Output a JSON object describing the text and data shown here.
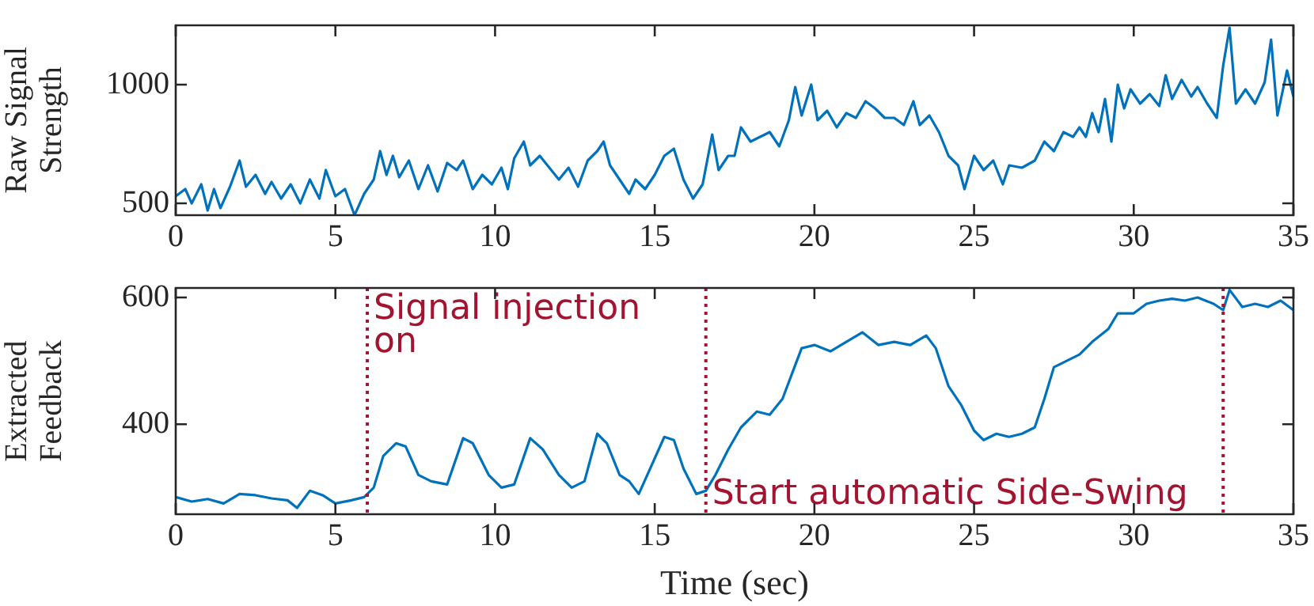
{
  "chart_data": [
    {
      "type": "line",
      "ylabel": "Raw Signal Strength",
      "xlim": [
        0,
        35
      ],
      "xticks": [
        0,
        5,
        10,
        15,
        20,
        25,
        30,
        35
      ],
      "ylim": [
        450,
        1250
      ],
      "yticks": [
        500,
        1000
      ],
      "grid": false,
      "legend": false,
      "marker": "none",
      "line_style": "solid",
      "series": [
        {
          "color": "#0072bd",
          "x": [
            0,
            0.3,
            0.5,
            0.8,
            1.0,
            1.2,
            1.4,
            1.7,
            2.0,
            2.2,
            2.5,
            2.8,
            3.0,
            3.3,
            3.6,
            3.9,
            4.2,
            4.5,
            4.7,
            5.0,
            5.3,
            5.6,
            5.9,
            6.2,
            6.4,
            6.6,
            6.8,
            7.0,
            7.3,
            7.6,
            7.9,
            8.2,
            8.5,
            8.8,
            9.0,
            9.3,
            9.6,
            9.9,
            10.2,
            10.4,
            10.6,
            10.9,
            11.1,
            11.4,
            11.7,
            12.0,
            12.3,
            12.6,
            12.9,
            13.2,
            13.4,
            13.6,
            13.9,
            14.2,
            14.4,
            14.7,
            15.0,
            15.3,
            15.6,
            15.9,
            16.2,
            16.5,
            16.8,
            17.0,
            17.3,
            17.5,
            17.7,
            18.0,
            18.3,
            18.6,
            18.9,
            19.2,
            19.4,
            19.6,
            19.9,
            20.1,
            20.4,
            20.7,
            21.0,
            21.3,
            21.6,
            21.9,
            22.2,
            22.5,
            22.8,
            23.1,
            23.3,
            23.6,
            23.9,
            24.2,
            24.5,
            24.7,
            25.0,
            25.3,
            25.6,
            25.9,
            26.1,
            26.5,
            26.9,
            27.2,
            27.5,
            27.8,
            28.1,
            28.3,
            28.5,
            28.7,
            28.9,
            29.1,
            29.3,
            29.5,
            29.7,
            29.9,
            30.2,
            30.5,
            30.8,
            31.0,
            31.2,
            31.5,
            31.8,
            32.0,
            32.3,
            32.6,
            32.8,
            33.0,
            33.2,
            33.5,
            33.8,
            34.1,
            34.3,
            34.5,
            34.8,
            35.0
          ],
          "values": [
            530,
            560,
            500,
            580,
            470,
            560,
            480,
            570,
            680,
            570,
            620,
            540,
            590,
            520,
            580,
            500,
            600,
            520,
            640,
            530,
            560,
            450,
            540,
            600,
            720,
            620,
            700,
            610,
            680,
            560,
            660,
            550,
            670,
            640,
            680,
            560,
            620,
            580,
            650,
            560,
            690,
            760,
            660,
            700,
            650,
            600,
            650,
            570,
            680,
            720,
            760,
            660,
            600,
            540,
            600,
            560,
            620,
            700,
            730,
            600,
            520,
            580,
            790,
            640,
            700,
            700,
            820,
            760,
            780,
            800,
            740,
            850,
            990,
            870,
            1000,
            850,
            890,
            820,
            880,
            860,
            930,
            900,
            860,
            860,
            830,
            930,
            830,
            870,
            800,
            700,
            660,
            560,
            700,
            640,
            680,
            580,
            660,
            650,
            680,
            760,
            720,
            800,
            780,
            820,
            780,
            880,
            800,
            940,
            760,
            1000,
            900,
            980,
            920,
            960,
            910,
            1040,
            940,
            1020,
            950,
            990,
            920,
            860,
            1080,
            1240,
            920,
            980,
            920,
            1010,
            1190,
            870,
            1060,
            950
          ]
        }
      ]
    },
    {
      "type": "line",
      "ylabel": "Extracted Feedback",
      "xlabel": "Time (sec)",
      "xlim": [
        0,
        35
      ],
      "xticks": [
        0,
        5,
        10,
        15,
        20,
        25,
        30,
        35
      ],
      "ylim": [
        258,
        615
      ],
      "yticks": [
        400,
        600
      ],
      "grid": false,
      "legend": false,
      "marker": "none",
      "line_style": "solid",
      "ref_lines": [
        {
          "axis": "x",
          "value": 6,
          "label": "Signal injection on",
          "color": "#a2142f",
          "line_style": "dotted"
        },
        {
          "axis": "x",
          "value": 16.6,
          "label": "Start automatic Side-Swing",
          "color": "#a2142f",
          "line_style": "dotted"
        },
        {
          "axis": "x",
          "value": 32.8,
          "color": "#a2142f",
          "line_style": "dotted"
        }
      ],
      "series": [
        {
          "color": "#0072bd",
          "x": [
            0,
            0.5,
            1,
            1.5,
            2,
            2.5,
            3,
            3.5,
            3.8,
            4.2,
            4.6,
            5,
            5.5,
            5.9,
            6.2,
            6.5,
            6.9,
            7.2,
            7.6,
            8,
            8.5,
            9,
            9.3,
            9.8,
            10.2,
            10.6,
            11.1,
            11.5,
            12,
            12.4,
            12.8,
            13.2,
            13.5,
            13.9,
            14.2,
            14.5,
            14.9,
            15.3,
            15.6,
            15.9,
            16.3,
            16.6,
            16.9,
            17.3,
            17.7,
            18.2,
            18.6,
            19.0,
            19.3,
            19.6,
            20.0,
            20.5,
            21.0,
            21.5,
            22.0,
            22.5,
            23.0,
            23.5,
            23.8,
            24.2,
            24.6,
            25.0,
            25.3,
            25.7,
            26.1,
            26.5,
            26.9,
            27.2,
            27.5,
            27.9,
            28.3,
            28.7,
            29.2,
            29.5,
            30.0,
            30.4,
            30.8,
            31.2,
            31.6,
            32.0,
            32.5,
            32.8,
            33.0,
            33.4,
            33.8,
            34.2,
            34.6,
            35.0
          ],
          "values": [
            285,
            278,
            282,
            275,
            290,
            288,
            283,
            280,
            268,
            295,
            288,
            275,
            280,
            285,
            300,
            350,
            370,
            365,
            320,
            310,
            305,
            378,
            370,
            320,
            300,
            305,
            378,
            360,
            320,
            300,
            310,
            385,
            370,
            320,
            310,
            290,
            335,
            380,
            375,
            330,
            290,
            295,
            320,
            360,
            395,
            420,
            415,
            440,
            480,
            520,
            525,
            515,
            530,
            545,
            525,
            530,
            525,
            540,
            520,
            460,
            430,
            390,
            375,
            385,
            380,
            385,
            395,
            440,
            490,
            500,
            510,
            530,
            550,
            575,
            575,
            590,
            595,
            598,
            595,
            600,
            590,
            580,
            612,
            585,
            590,
            585,
            595,
            580
          ]
        }
      ]
    }
  ]
}
